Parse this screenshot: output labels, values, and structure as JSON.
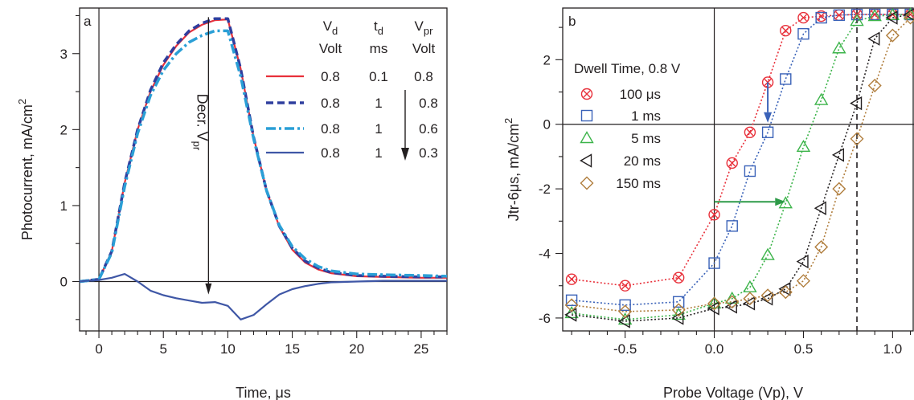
{
  "chart_data": [
    {
      "type": "line",
      "panel_label": "a",
      "xlabel": "Time, μs",
      "ylabel": "Photocurrent, mA/cm",
      "ylabel_sup": "2",
      "xlim": [
        -1.5,
        27
      ],
      "ylim": [
        -0.65,
        3.6
      ],
      "xticks": [
        0,
        5,
        10,
        15,
        20,
        25
      ],
      "yticks": [
        0,
        1,
        2,
        3
      ],
      "legend_header": [
        {
          "main": "V",
          "sub": "d",
          "unit": "Volt"
        },
        {
          "main": "t",
          "sub": "d",
          "unit": "ms"
        },
        {
          "main": "V",
          "sub": "pr",
          "unit": "Volt"
        }
      ],
      "series": [
        {
          "vd": "0.8",
          "td": "0.1",
          "vpr": "0.8",
          "color": "#e8303a",
          "style": "solid",
          "x": [
            -1.5,
            -1,
            0,
            1,
            2,
            3,
            4,
            5,
            6,
            7,
            8,
            9,
            10,
            11,
            12,
            13,
            14,
            15,
            16,
            17,
            18,
            20,
            22,
            25,
            27
          ],
          "y": [
            0,
            0.01,
            0.03,
            0.4,
            1.3,
            2.0,
            2.5,
            2.85,
            3.1,
            3.28,
            3.38,
            3.44,
            3.45,
            2.8,
            1.9,
            1.2,
            0.72,
            0.42,
            0.25,
            0.16,
            0.11,
            0.07,
            0.06,
            0.05,
            0.05
          ]
        },
        {
          "vd": "0.8",
          "td": "1",
          "vpr": "0.8",
          "color": "#2f3e9e",
          "style": "dash",
          "x": [
            -1.5,
            -1,
            0,
            1,
            2,
            3,
            4,
            5,
            6,
            7,
            8,
            9,
            10,
            11,
            12,
            13,
            14,
            15,
            16,
            17,
            18,
            20,
            22,
            25,
            27
          ],
          "y": [
            0,
            0.01,
            0.03,
            0.4,
            1.3,
            2.0,
            2.52,
            2.88,
            3.12,
            3.3,
            3.4,
            3.46,
            3.46,
            2.8,
            1.9,
            1.2,
            0.73,
            0.44,
            0.27,
            0.18,
            0.12,
            0.08,
            0.07,
            0.06,
            0.06
          ]
        },
        {
          "vd": "0.8",
          "td": "1",
          "vpr": "0.6",
          "color": "#2a9fd6",
          "style": "dashdot",
          "x": [
            -1.5,
            -1,
            0,
            1,
            2,
            3,
            4,
            5,
            6,
            7,
            8,
            9,
            10,
            11,
            12,
            13,
            14,
            15,
            16,
            17,
            18,
            20,
            22,
            25,
            27
          ],
          "y": [
            0,
            0.01,
            0.03,
            0.38,
            1.25,
            1.95,
            2.45,
            2.78,
            3.0,
            3.15,
            3.24,
            3.3,
            3.3,
            2.7,
            1.88,
            1.2,
            0.74,
            0.46,
            0.3,
            0.2,
            0.14,
            0.1,
            0.09,
            0.08,
            0.07
          ]
        },
        {
          "vd": "0.8",
          "td": "1",
          "vpr": "0.3",
          "color": "#3f57a6",
          "style": "solid",
          "x": [
            -1.5,
            -1,
            0,
            1,
            2,
            3,
            4,
            5,
            6,
            7,
            8,
            9,
            10,
            11,
            12,
            13,
            14,
            15,
            16,
            17,
            18,
            20,
            22,
            25,
            27
          ],
          "y": [
            0,
            0.01,
            0.02,
            0.05,
            0.1,
            0.0,
            -0.12,
            -0.18,
            -0.22,
            -0.25,
            -0.28,
            -0.27,
            -0.32,
            -0.5,
            -0.44,
            -0.3,
            -0.17,
            -0.1,
            -0.06,
            -0.03,
            -0.01,
            0,
            0.01,
            0.01,
            0.01
          ]
        }
      ],
      "annotation": {
        "text": "Decr. V",
        "sub": "pr"
      }
    },
    {
      "type": "scatter",
      "panel_label": "b",
      "xlabel": "Probe Voltage (Vp), V",
      "ylabel": "Jtr-6μs, mA/cm",
      "ylabel_sup": "2",
      "xlim": [
        -0.85,
        1.12
      ],
      "ylim": [
        -6.4,
        3.6
      ],
      "xticks": [
        -0.5,
        0.0,
        0.5,
        1.0
      ],
      "xtick_labels": [
        "-0.5",
        "0.0",
        "0.5",
        "1.0"
      ],
      "yticks": [
        -6,
        -4,
        -2,
        0,
        2
      ],
      "legend_title": "Dwell Time, 0.8 V",
      "reference_line_x": 0.8,
      "series": [
        {
          "name": "100 μs",
          "marker": "circle-x",
          "color": "#e8303a",
          "x": [
            -0.8,
            -0.5,
            -0.2,
            0.0,
            0.1,
            0.2,
            0.3,
            0.4,
            0.5,
            0.6,
            0.7,
            0.8,
            0.9,
            1.0,
            1.1
          ],
          "y": [
            -4.8,
            -5.0,
            -4.75,
            -2.8,
            -1.2,
            -0.25,
            1.3,
            2.9,
            3.3,
            3.35,
            3.38,
            3.4,
            3.4,
            3.4,
            3.4
          ]
        },
        {
          "name": "1 ms",
          "marker": "square",
          "color": "#3a62b8",
          "x": [
            -0.8,
            -0.5,
            -0.2,
            0.0,
            0.1,
            0.2,
            0.3,
            0.4,
            0.5,
            0.6,
            0.7,
            0.8,
            0.9,
            1.0,
            1.1
          ],
          "y": [
            -5.45,
            -5.6,
            -5.5,
            -4.3,
            -3.15,
            -1.45,
            -0.25,
            1.4,
            2.8,
            3.3,
            3.38,
            3.4,
            3.4,
            3.4,
            3.4
          ]
        },
        {
          "name": "5 ms",
          "marker": "triangle-up",
          "color": "#3cb44a",
          "x": [
            -0.8,
            -0.5,
            -0.2,
            0.0,
            0.1,
            0.2,
            0.3,
            0.4,
            0.5,
            0.6,
            0.7,
            0.8,
            0.9,
            1.0,
            1.1
          ],
          "y": [
            -5.85,
            -6.05,
            -5.9,
            -5.55,
            -5.4,
            -5.05,
            -4.05,
            -2.45,
            -0.7,
            0.75,
            2.35,
            3.2,
            3.35,
            3.38,
            3.4
          ]
        },
        {
          "name": "20 ms",
          "marker": "triangle-left",
          "color": "#231f20",
          "x": [
            -0.8,
            -0.5,
            -0.2,
            0.0,
            0.1,
            0.2,
            0.3,
            0.4,
            0.5,
            0.6,
            0.7,
            0.8,
            0.9,
            1.0,
            1.1
          ],
          "y": [
            -5.9,
            -6.1,
            -6.0,
            -5.7,
            -5.65,
            -5.55,
            -5.4,
            -5.1,
            -4.25,
            -2.6,
            -0.95,
            0.65,
            2.65,
            3.3,
            3.4
          ]
        },
        {
          "name": "150 ms",
          "marker": "diamond",
          "color": "#b07d3c",
          "x": [
            -0.8,
            -0.5,
            -0.2,
            0.0,
            0.1,
            0.2,
            0.3,
            0.4,
            0.5,
            0.6,
            0.7,
            0.8,
            0.9,
            1.0,
            1.1
          ],
          "y": [
            -5.6,
            -5.8,
            -5.75,
            -5.55,
            -5.5,
            -5.4,
            -5.3,
            -5.2,
            -4.85,
            -3.8,
            -2.0,
            -0.45,
            1.2,
            2.75,
            3.3
          ]
        }
      ],
      "arrows": [
        {
          "from": [
            0.3,
            1.3
          ],
          "to": [
            0.3,
            0.05
          ],
          "color": "#3a62b8"
        },
        {
          "from": [
            0.0,
            -2.4
          ],
          "to": [
            0.4,
            -2.4
          ],
          "color": "#2e9a48"
        }
      ]
    }
  ]
}
